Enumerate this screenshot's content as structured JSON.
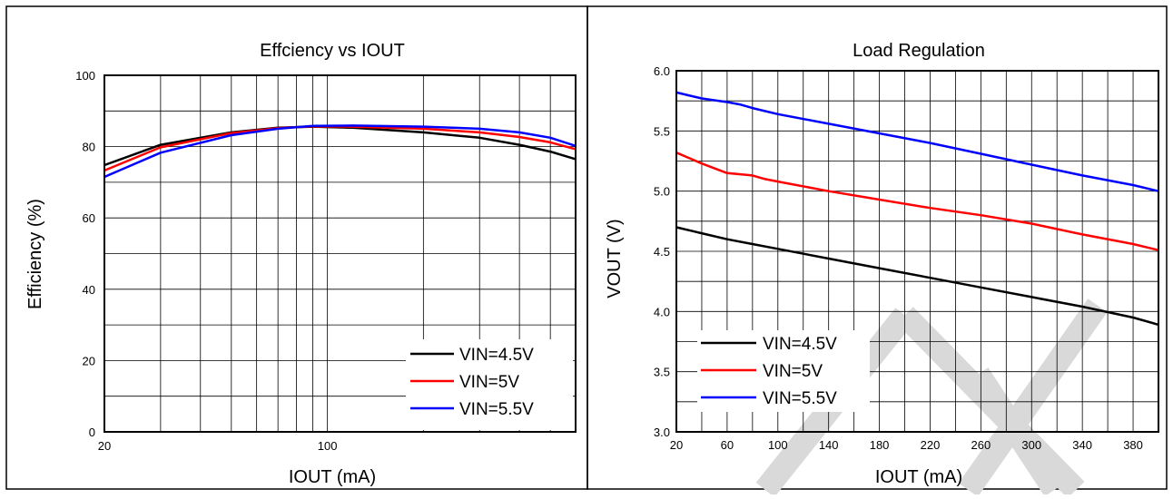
{
  "colors": {
    "black": "#000000",
    "red": "#ff0000",
    "blue": "#0000ff",
    "watermark": "#d9d9d9"
  },
  "chart_data": [
    {
      "type": "line",
      "title": "Effciency vs IOUT",
      "xlabel": "IOUT (mA)",
      "ylabel": "Efficiency (%)",
      "xscale": "log",
      "xlim": [
        20,
        600
      ],
      "ylim": [
        0,
        100
      ],
      "xticks": [
        "20",
        "100"
      ],
      "yticks": [
        "0",
        "20",
        "40",
        "60",
        "80",
        "100"
      ],
      "grid": true,
      "legend": "bottom-right",
      "series": [
        {
          "name": "VIN=4.5V",
          "color": "#000000",
          "x": [
            20,
            30,
            50,
            70,
            90,
            120,
            200,
            300,
            400,
            500,
            600
          ],
          "y": [
            74.8,
            80.5,
            84.0,
            85.3,
            85.6,
            85.3,
            84.0,
            82.5,
            80.5,
            78.6,
            76.5
          ]
        },
        {
          "name": "VIN=5V",
          "color": "#ff0000",
          "x": [
            20,
            30,
            50,
            70,
            90,
            120,
            200,
            300,
            400,
            500,
            600
          ],
          "y": [
            73.3,
            79.8,
            83.8,
            85.2,
            85.7,
            85.6,
            85.0,
            84.0,
            82.7,
            81.2,
            79.3
          ]
        },
        {
          "name": "VIN=5.5V",
          "color": "#0000ff",
          "x": [
            20,
            30,
            50,
            70,
            90,
            120,
            200,
            300,
            400,
            500,
            600
          ],
          "y": [
            71.5,
            78.3,
            83.2,
            85.0,
            85.8,
            85.9,
            85.6,
            85.0,
            84.0,
            82.5,
            80.2
          ]
        }
      ]
    },
    {
      "type": "line",
      "title": "Load Regulation",
      "xlabel": "IOUT (mA)",
      "ylabel": "VOUT (V)",
      "xlim": [
        20,
        400
      ],
      "ylim": [
        3.0,
        6.0
      ],
      "xticks": [
        "20",
        "60",
        "100",
        "140",
        "180",
        "220",
        "260",
        "300",
        "340",
        "380"
      ],
      "yticks": [
        "3.0",
        "3.5",
        "4.0",
        "4.5",
        "5.0",
        "5.5",
        "6.0"
      ],
      "grid": true,
      "legend": "bottom-left",
      "series": [
        {
          "name": "VIN=4.5V",
          "color": "#000000",
          "x": [
            20,
            40,
            60,
            80,
            100,
            140,
            180,
            220,
            260,
            300,
            340,
            380,
            400
          ],
          "y": [
            4.7,
            4.65,
            4.6,
            4.56,
            4.52,
            4.44,
            4.36,
            4.28,
            4.2,
            4.12,
            4.04,
            3.95,
            3.89
          ]
        },
        {
          "name": "VIN=5V",
          "color": "#ff0000",
          "x": [
            20,
            40,
            60,
            80,
            90,
            100,
            140,
            180,
            220,
            260,
            300,
            340,
            380,
            400
          ],
          "y": [
            5.32,
            5.23,
            5.15,
            5.13,
            5.1,
            5.08,
            5.0,
            4.93,
            4.86,
            4.8,
            4.73,
            4.64,
            4.56,
            4.51
          ]
        },
        {
          "name": "VIN=5.5V",
          "color": "#0000ff",
          "x": [
            20,
            40,
            60,
            70,
            80,
            100,
            140,
            180,
            220,
            260,
            300,
            340,
            380,
            400
          ],
          "y": [
            5.82,
            5.77,
            5.74,
            5.72,
            5.69,
            5.64,
            5.56,
            5.48,
            5.4,
            5.31,
            5.22,
            5.13,
            5.05,
            5.0
          ]
        }
      ]
    }
  ]
}
